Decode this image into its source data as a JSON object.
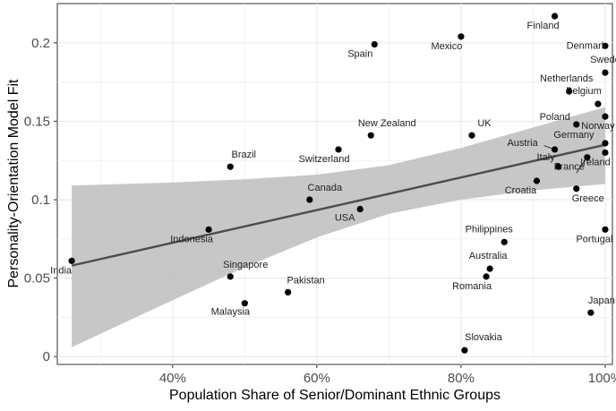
{
  "chart_data": {
    "type": "scatter",
    "title": "",
    "xlabel": "Population Share of Senior/Dominant Ethnic Groups",
    "ylabel": "Personality-Orientation Model Fit",
    "xlim": [
      0.24,
      1.01
    ],
    "ylim": [
      -0.005,
      0.225
    ],
    "x_ticks": [
      0.4,
      0.6,
      0.8,
      1.0
    ],
    "x_tick_labels": [
      "40%",
      "60%",
      "80%",
      "100%"
    ],
    "y_ticks": [
      0,
      0.05,
      0.1,
      0.15,
      0.2
    ],
    "y_tick_labels": [
      "0",
      "0.05",
      "0.1",
      "0.15",
      "0.2"
    ],
    "grid": true,
    "colors": {
      "panel": "#ffffff",
      "grid": "#ebebeb",
      "point": "#000000",
      "fit": "#4d4d4d",
      "band": "#bdbdbd",
      "border": "#333333"
    },
    "points": [
      {
        "label": "India",
        "x": 0.26,
        "y": 0.061
      },
      {
        "label": "Indonesia",
        "x": 0.45,
        "y": 0.081
      },
      {
        "label": "Singapore",
        "x": 0.48,
        "y": 0.051
      },
      {
        "label": "Brazil",
        "x": 0.48,
        "y": 0.121
      },
      {
        "label": "Malaysia",
        "x": 0.5,
        "y": 0.034
      },
      {
        "label": "Pakistan",
        "x": 0.56,
        "y": 0.041
      },
      {
        "label": "Canada",
        "x": 0.59,
        "y": 0.1
      },
      {
        "label": "Switzerland",
        "x": 0.63,
        "y": 0.132
      },
      {
        "label": "USA",
        "x": 0.66,
        "y": 0.094
      },
      {
        "label": "New Zealand",
        "x": 0.675,
        "y": 0.141
      },
      {
        "label": "Spain",
        "x": 0.68,
        "y": 0.199
      },
      {
        "label": "Mexico",
        "x": 0.8,
        "y": 0.204
      },
      {
        "label": "UK",
        "x": 0.815,
        "y": 0.141
      },
      {
        "label": "Slovakia",
        "x": 0.805,
        "y": 0.004
      },
      {
        "label": "Romania",
        "x": 0.835,
        "y": 0.051
      },
      {
        "label": "Australia",
        "x": 0.84,
        "y": 0.056
      },
      {
        "label": "Philippines",
        "x": 0.86,
        "y": 0.073
      },
      {
        "label": "Croatia",
        "x": 0.905,
        "y": 0.112
      },
      {
        "label": "Finland",
        "x": 0.93,
        "y": 0.217
      },
      {
        "label": "Austria",
        "x": 0.93,
        "y": 0.132
      },
      {
        "label": "Italy",
        "x": 0.935,
        "y": 0.121
      },
      {
        "label": "Netherlands",
        "x": 0.95,
        "y": 0.169
      },
      {
        "label": "Poland",
        "x": 0.96,
        "y": 0.148
      },
      {
        "label": "Greece",
        "x": 0.96,
        "y": 0.107
      },
      {
        "label": "France",
        "x": 0.975,
        "y": 0.127
      },
      {
        "label": "Japan",
        "x": 0.98,
        "y": 0.028
      },
      {
        "label": "Belgium",
        "x": 0.99,
        "y": 0.161
      },
      {
        "label": "Germany",
        "x": 1.0,
        "y": 0.136
      },
      {
        "label": "Denmark",
        "x": 1.0,
        "y": 0.198
      },
      {
        "label": "Sweden",
        "x": 1.0,
        "y": 0.181
      },
      {
        "label": "Norway",
        "x": 1.0,
        "y": 0.153
      },
      {
        "label": "Ireland",
        "x": 1.0,
        "y": 0.13
      },
      {
        "label": "Portugal",
        "x": 1.0,
        "y": 0.081
      }
    ],
    "fit_line": {
      "x": [
        0.26,
        1.0
      ],
      "y": [
        0.058,
        0.135
      ]
    },
    "confidence_band": {
      "x": [
        0.26,
        0.4,
        0.5,
        0.6,
        0.7,
        0.8,
        0.9,
        1.0
      ],
      "upper": [
        0.109,
        0.111,
        0.113,
        0.116,
        0.122,
        0.133,
        0.146,
        0.159
      ],
      "lower": [
        0.006,
        0.036,
        0.057,
        0.076,
        0.091,
        0.1,
        0.106,
        0.11
      ]
    }
  }
}
